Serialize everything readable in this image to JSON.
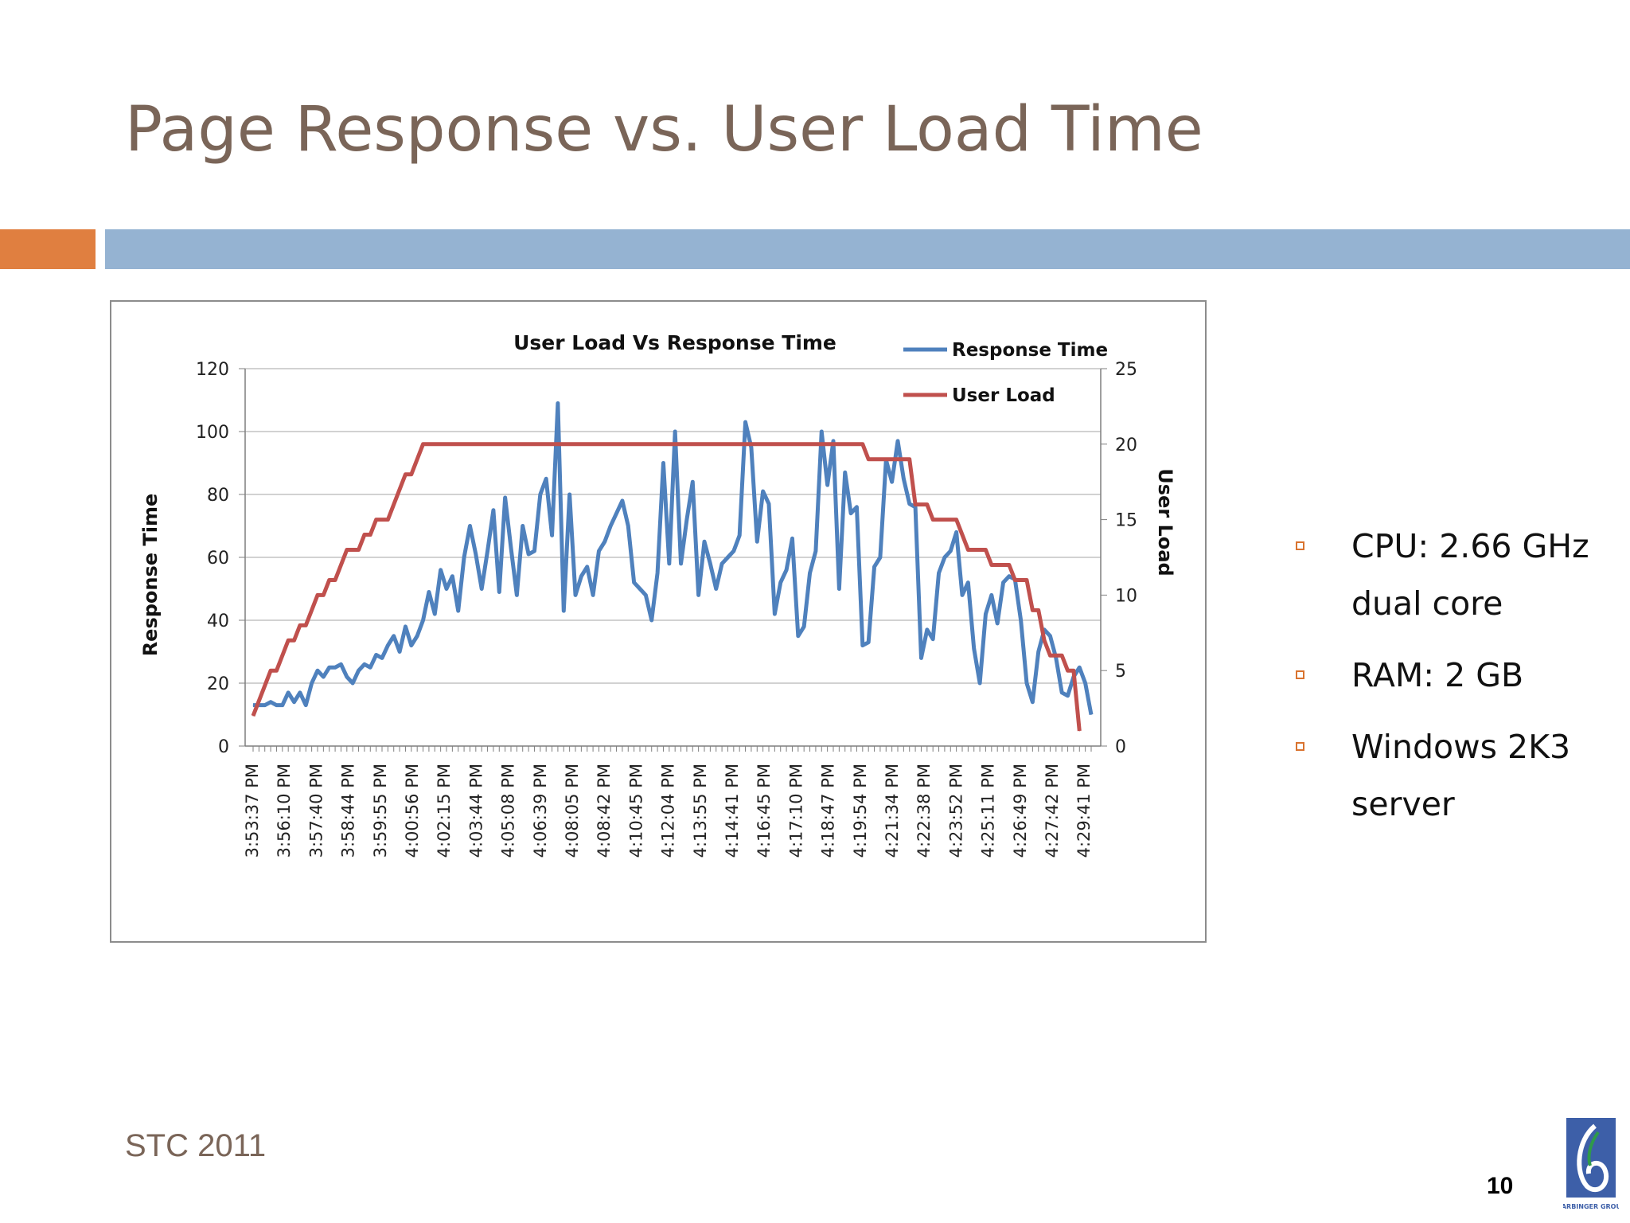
{
  "slide": {
    "title": "Page Response vs. User Load Time",
    "footer": "STC 2011",
    "page_number": "10",
    "logo_text": "HARBINGER GROUP",
    "bullets": [
      "CPU: 2.66 GHz dual core",
      "RAM: 2 GB",
      "Windows 2K3 server"
    ]
  },
  "chart_data": {
    "type": "line",
    "title": "User Load Vs Response Time",
    "ylabel": "Response Time",
    "y2label": "User Load",
    "ylim": [
      0,
      120
    ],
    "y2lim": [
      0,
      25
    ],
    "yticks": [
      0,
      20,
      40,
      60,
      80,
      100,
      120
    ],
    "y2ticks": [
      0,
      5,
      10,
      15,
      20,
      25
    ],
    "grid": true,
    "legend": "top-right",
    "x_tick_labels": [
      "3:53:37 PM",
      "3:56:10 PM",
      "3:57:40 PM",
      "3:58:44 PM",
      "3:59:55 PM",
      "4:00:56 PM",
      "4:02:15 PM",
      "4:03:44 PM",
      "4:05:08 PM",
      "4:06:39 PM",
      "4:08:05 PM",
      "4:08:42 PM",
      "4:10:45 PM",
      "4:12:04 PM",
      "4:13:55 PM",
      "4:14:41 PM",
      "4:16:45 PM",
      "4:17:10 PM",
      "4:18:47 PM",
      "4:19:54 PM",
      "4:21:34 PM",
      "4:22:38 PM",
      "4:23:52 PM",
      "4:25:11 PM",
      "4:26:49 PM",
      "4:27:42 PM",
      "4:29:41 PM"
    ],
    "series": [
      {
        "name": "Response Time",
        "axis": "left",
        "color": "#4f81bd",
        "values": [
          13,
          13,
          13,
          14,
          13,
          13,
          17,
          14,
          17,
          13,
          20,
          24,
          22,
          25,
          25,
          26,
          22,
          20,
          24,
          26,
          25,
          29,
          28,
          32,
          35,
          30,
          38,
          32,
          35,
          40,
          49,
          42,
          56,
          50,
          54,
          43,
          60,
          70,
          61,
          50,
          62,
          75,
          49,
          79,
          63,
          48,
          70,
          61,
          62,
          80,
          85,
          67,
          109,
          43,
          80,
          48,
          54,
          57,
          48,
          62,
          65,
          70,
          74,
          78,
          70,
          52,
          50,
          48,
          40,
          55,
          90,
          58,
          100,
          58,
          72,
          84,
          48,
          65,
          58,
          50,
          58,
          60,
          62,
          67,
          103,
          95,
          65,
          81,
          77,
          42,
          52,
          56,
          66,
          35,
          38,
          55,
          62,
          100,
          83,
          97,
          50,
          87,
          74,
          76,
          32,
          33,
          57,
          60,
          91,
          84,
          97,
          85,
          77,
          76,
          28,
          37,
          34,
          55,
          60,
          62,
          68,
          48,
          52,
          31,
          20,
          42,
          48,
          39,
          52,
          54,
          53,
          40,
          20,
          14,
          30,
          37,
          35,
          28,
          17,
          16,
          22,
          25,
          20,
          10
        ],
        "x_positions": [
          0,
          1,
          2,
          3,
          4,
          5,
          6,
          7,
          8,
          9,
          10,
          11,
          12,
          13,
          14,
          15,
          16,
          17,
          18,
          19,
          20,
          21,
          22,
          23,
          24,
          25,
          26,
          27,
          28,
          29,
          30,
          31,
          32,
          33,
          34,
          35,
          36,
          37,
          38,
          39,
          40,
          41,
          42,
          43,
          44,
          45,
          46,
          47,
          48,
          49,
          50,
          51,
          52,
          53,
          54,
          55,
          56,
          57,
          58,
          59,
          60,
          61,
          62,
          63,
          64,
          65,
          66,
          67,
          68,
          69,
          70,
          71,
          72,
          73,
          74,
          75,
          76,
          77,
          78,
          79,
          80,
          81,
          82,
          83,
          84,
          85,
          86,
          87,
          88,
          89,
          90,
          91,
          92,
          93,
          94,
          95,
          96,
          97,
          98,
          99,
          100,
          101,
          102,
          103,
          104,
          105,
          106,
          107,
          108,
          109,
          110,
          111,
          112,
          113,
          114,
          115,
          116,
          117,
          118,
          119,
          120,
          121,
          122,
          123,
          124,
          125,
          126,
          127,
          128,
          129,
          130,
          131,
          132,
          133,
          134,
          135,
          136,
          137,
          138,
          139,
          140,
          141,
          142,
          143
        ]
      },
      {
        "name": "User Load",
        "axis": "right",
        "color": "#c0504d",
        "step_points": [
          [
            0,
            2
          ],
          [
            2,
            4
          ],
          [
            3,
            5
          ],
          [
            4,
            5
          ],
          [
            5,
            6
          ],
          [
            6,
            7
          ],
          [
            7,
            7
          ],
          [
            8,
            8
          ],
          [
            9,
            8
          ],
          [
            10,
            9
          ],
          [
            11,
            10
          ],
          [
            12,
            10
          ],
          [
            13,
            11
          ],
          [
            14,
            11
          ],
          [
            15,
            12
          ],
          [
            16,
            13
          ],
          [
            18,
            13
          ],
          [
            19,
            14
          ],
          [
            20,
            14
          ],
          [
            21,
            15
          ],
          [
            23,
            15
          ],
          [
            24,
            16
          ],
          [
            25,
            17
          ],
          [
            26,
            18
          ],
          [
            27,
            18
          ],
          [
            28,
            19
          ],
          [
            29,
            20
          ],
          [
            104,
            20
          ],
          [
            105,
            19
          ],
          [
            112,
            19
          ],
          [
            113,
            16
          ],
          [
            115,
            16
          ],
          [
            116,
            15
          ],
          [
            120,
            15
          ],
          [
            121,
            14
          ],
          [
            122,
            13
          ],
          [
            125,
            13
          ],
          [
            126,
            12
          ],
          [
            129,
            12
          ],
          [
            130,
            11
          ],
          [
            132,
            11
          ],
          [
            133,
            9
          ],
          [
            134,
            9
          ],
          [
            135,
            7
          ],
          [
            136,
            6
          ],
          [
            138,
            6
          ],
          [
            139,
            5
          ],
          [
            140,
            5
          ],
          [
            141,
            1
          ]
        ]
      }
    ],
    "x_count": 144
  }
}
